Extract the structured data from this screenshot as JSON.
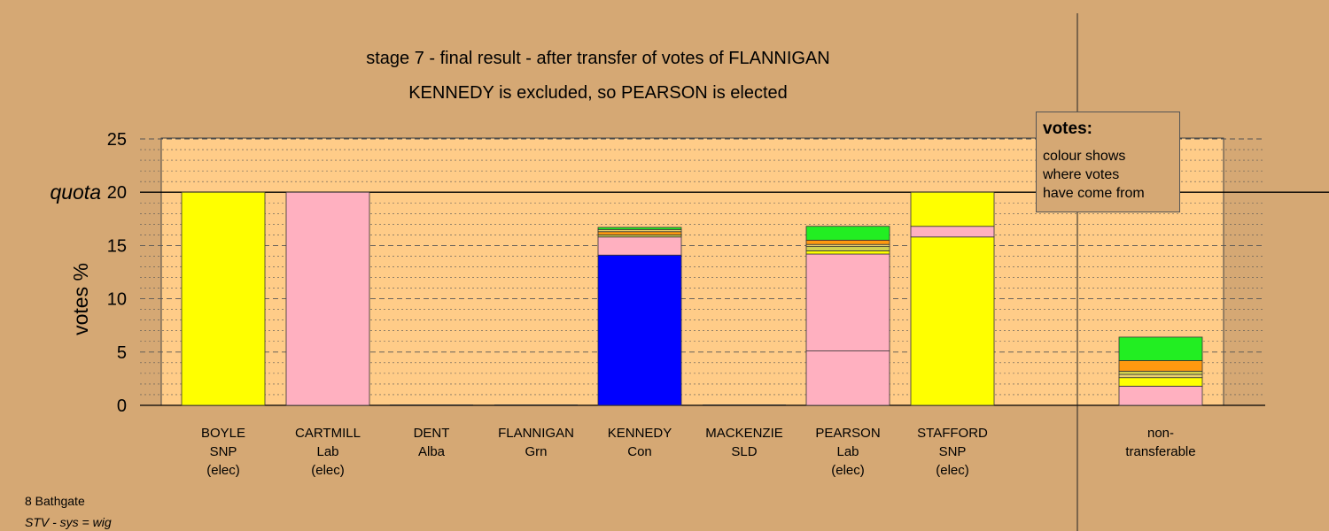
{
  "chart_data": {
    "type": "bar",
    "title": "stage 7 - final result - after transfer of votes of FLANNIGAN",
    "subtitle": "KENNEDY is excluded, so PEARSON is elected",
    "ylabel": "votes %",
    "ylim": [
      0,
      25
    ],
    "yticks": [
      "0",
      "5",
      "10",
      "15",
      "20",
      "25"
    ],
    "quota": 20,
    "quota_label": "quota",
    "grid": true,
    "legend_position": "top-right",
    "party_colors": {
      "SNP": "#ffff00",
      "Lab": "#ffb0c0",
      "Con": "#0000ff",
      "Grn": "#22ee22",
      "SLD": "#ff9910",
      "Alba": "#d0d050",
      "Other": "#e9d070"
    },
    "categories": [
      {
        "name": "BOYLE",
        "party": "SNP",
        "status": "(elec)",
        "segments": [
          {
            "from": "SNP",
            "value": 20.0
          }
        ]
      },
      {
        "name": "CARTMILL",
        "party": "Lab",
        "status": "(elec)",
        "segments": [
          {
            "from": "Lab",
            "value": 20.0
          }
        ]
      },
      {
        "name": "DENT",
        "party": "Alba",
        "status": "",
        "segments": []
      },
      {
        "name": "FLANNIGAN",
        "party": "Grn",
        "status": "",
        "segments": []
      },
      {
        "name": "KENNEDY",
        "party": "Con",
        "status": "",
        "segments": [
          {
            "from": "Con",
            "value": 14.1
          },
          {
            "from": "Lab",
            "value": 1.7
          },
          {
            "from": "Alba",
            "value": 0.2
          },
          {
            "from": "SLD",
            "value": 0.3
          },
          {
            "from": "Other",
            "value": 0.2
          },
          {
            "from": "Grn",
            "value": 0.2
          }
        ]
      },
      {
        "name": "MACKENZIE",
        "party": "SLD",
        "status": "",
        "segments": []
      },
      {
        "name": "PEARSON",
        "party": "Lab",
        "status": "(elec)",
        "segments": [
          {
            "from": "Lab",
            "value": 5.1
          },
          {
            "from": "Lab",
            "value": 9.1
          },
          {
            "from": "SNP",
            "value": 0.3
          },
          {
            "from": "Alba",
            "value": 0.4
          },
          {
            "from": "Other",
            "value": 0.2
          },
          {
            "from": "SLD",
            "value": 0.4
          },
          {
            "from": "Grn",
            "value": 1.3
          }
        ]
      },
      {
        "name": "STAFFORD",
        "party": "SNP",
        "status": "(elec)",
        "segments": [
          {
            "from": "SNP",
            "value": 15.8
          },
          {
            "from": "Lab",
            "value": 1.0
          },
          {
            "from": "SNP",
            "value": 3.2
          }
        ]
      },
      {
        "name": "non-",
        "party": "transferable",
        "status": "",
        "segments": [
          {
            "from": "Lab",
            "value": 1.8
          },
          {
            "from": "SNP",
            "value": 0.8
          },
          {
            "from": "Other",
            "value": 0.3
          },
          {
            "from": "Alba",
            "value": 0.3
          },
          {
            "from": "SLD",
            "value": 1.0
          },
          {
            "from": "Grn",
            "value": 2.2
          }
        ]
      }
    ]
  },
  "legend": {
    "title": "votes:",
    "lines": [
      "colour shows",
      "where votes",
      "have come from"
    ]
  },
  "footer": {
    "line1": "8 Bathgate",
    "line2": "STV - sys = wig"
  }
}
